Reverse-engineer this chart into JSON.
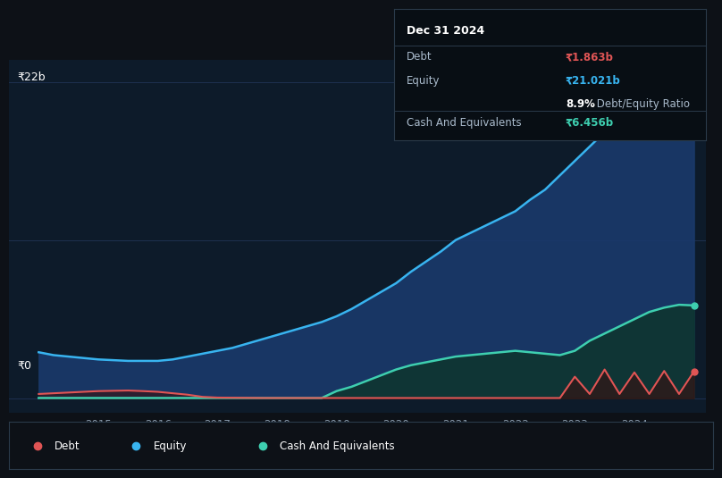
{
  "bg_color": "#0d1117",
  "plot_bg_color": "#0d1b2a",
  "grid_color": "#1e3050",
  "ylabel_text": "₹22b",
  "ylabel0_text": "₹0",
  "title_date": "Dec 31 2024",
  "tooltip": {
    "debt_label": "Debt",
    "debt_value": "₹1.863b",
    "equity_label": "Equity",
    "equity_value": "₹21.021b",
    "ratio_pct": "8.9%",
    "ratio_label": " Debt/Equity Ratio",
    "cash_label": "Cash And Equivalents",
    "cash_value": "₹6.456b"
  },
  "legend": [
    {
      "label": "Debt",
      "color": "#e05555"
    },
    {
      "label": "Equity",
      "color": "#38b4f0"
    },
    {
      "label": "Cash And Equivalents",
      "color": "#3ecfb0"
    }
  ],
  "years": [
    2014.0,
    2014.25,
    2014.5,
    2014.75,
    2015.0,
    2015.25,
    2015.5,
    2015.75,
    2016.0,
    2016.25,
    2016.5,
    2016.75,
    2017.0,
    2017.25,
    2017.5,
    2017.75,
    2018.0,
    2018.25,
    2018.5,
    2018.75,
    2019.0,
    2019.25,
    2019.5,
    2019.75,
    2020.0,
    2020.25,
    2020.5,
    2020.75,
    2021.0,
    2021.25,
    2021.5,
    2021.75,
    2022.0,
    2022.25,
    2022.5,
    2022.75,
    2023.0,
    2023.25,
    2023.5,
    2023.75,
    2024.0,
    2024.25,
    2024.5,
    2024.75,
    2025.0
  ],
  "equity": [
    3.2,
    3.0,
    2.9,
    2.8,
    2.7,
    2.65,
    2.6,
    2.6,
    2.6,
    2.7,
    2.9,
    3.1,
    3.3,
    3.5,
    3.8,
    4.1,
    4.4,
    4.7,
    5.0,
    5.3,
    5.7,
    6.2,
    6.8,
    7.4,
    8.0,
    8.8,
    9.5,
    10.2,
    11.0,
    11.5,
    12.0,
    12.5,
    13.0,
    13.8,
    14.5,
    15.5,
    16.5,
    17.5,
    18.5,
    19.5,
    20.0,
    20.5,
    21.0,
    21.5,
    21.021
  ],
  "debt": [
    0.3,
    0.35,
    0.4,
    0.45,
    0.5,
    0.52,
    0.54,
    0.5,
    0.45,
    0.35,
    0.25,
    0.1,
    0.05,
    0.04,
    0.03,
    0.02,
    0.02,
    0.02,
    0.02,
    0.02,
    0.02,
    0.02,
    0.02,
    0.02,
    0.02,
    0.02,
    0.02,
    0.02,
    0.02,
    0.02,
    0.02,
    0.02,
    0.02,
    0.02,
    0.02,
    0.02,
    1.5,
    0.3,
    2.0,
    0.3,
    1.8,
    0.3,
    1.9,
    0.3,
    1.863
  ],
  "cash": [
    0.02,
    0.02,
    0.02,
    0.02,
    0.02,
    0.02,
    0.02,
    0.02,
    0.02,
    0.02,
    0.02,
    0.02,
    0.02,
    0.02,
    0.02,
    0.02,
    0.02,
    0.02,
    0.02,
    0.02,
    0.5,
    0.8,
    1.2,
    1.6,
    2.0,
    2.3,
    2.5,
    2.7,
    2.9,
    3.0,
    3.1,
    3.2,
    3.3,
    3.2,
    3.1,
    3.0,
    3.3,
    4.0,
    4.5,
    5.0,
    5.5,
    6.0,
    6.3,
    6.5,
    6.456
  ],
  "xlim": [
    2013.5,
    2025.2
  ],
  "ylim": [
    -1.0,
    23.5
  ],
  "xticks": [
    2015,
    2016,
    2017,
    2018,
    2019,
    2020,
    2021,
    2022,
    2023,
    2024
  ],
  "equity_color": "#38b4f0",
  "equity_fill": "#1a3a6b",
  "debt_color": "#e05555",
  "debt_fill": "#3a1010",
  "cash_color": "#3ecfb0",
  "cash_fill": "#0e3530",
  "tooltip_bg": "#080e14",
  "tooltip_border": "#2a3a4a"
}
